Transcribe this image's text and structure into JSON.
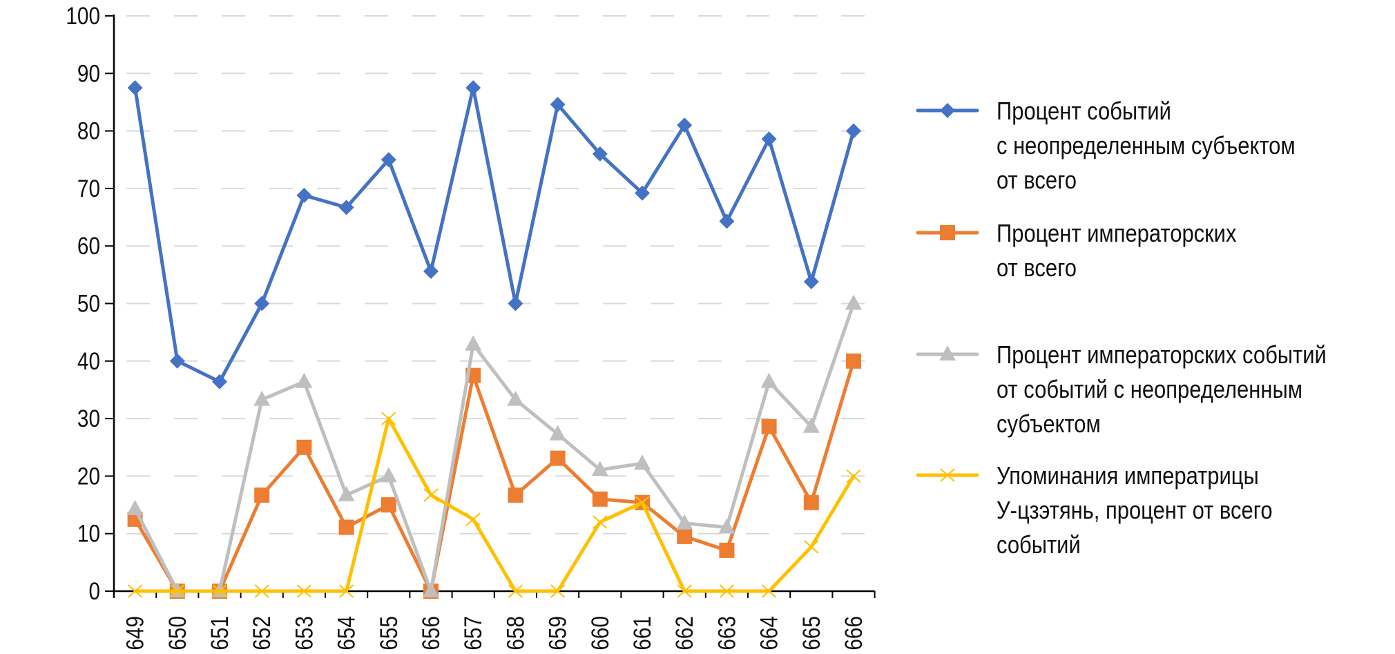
{
  "chart_data": {
    "type": "line",
    "title": "",
    "xlabel": "",
    "ylabel": "",
    "ylim": [
      0,
      100
    ],
    "yticks": [
      "0",
      "10",
      "20",
      "30",
      "40",
      "50",
      "60",
      "70",
      "80",
      "90",
      "100"
    ],
    "grid": true,
    "legend_position": "right",
    "categories": [
      "649",
      "650",
      "651",
      "652",
      "653",
      "654",
      "655",
      "656",
      "657",
      "658",
      "659",
      "660",
      "661",
      "662",
      "663",
      "664",
      "665",
      "666"
    ],
    "series": [
      {
        "name": "Процент событий с неопределенным субъектом от всего",
        "legend_lines": [
          "Процент событий",
          "с неопределенным субъектом",
          "от всего"
        ],
        "color": "#4472C4",
        "marker": "diamond",
        "values": [
          87.5,
          40,
          36.4,
          50,
          68.8,
          66.7,
          75,
          55.6,
          87.5,
          50,
          84.6,
          76,
          69.2,
          81,
          64.3,
          78.6,
          53.8,
          80
        ]
      },
      {
        "name": "Процент императорских от всего",
        "legend_lines": [
          "Процент императорских",
          "от всего"
        ],
        "color": "#ED7D31",
        "marker": "square",
        "values": [
          12.5,
          0,
          0,
          16.7,
          25,
          11.1,
          15,
          0,
          37.5,
          16.7,
          23.1,
          16,
          15.4,
          9.5,
          7.1,
          28.6,
          15.4,
          40
        ]
      },
      {
        "name": "Процент императорских событий от событий с неопределенным субъектом",
        "legend_lines": [
          "Процент императорских событий",
          "от событий с неопределенным",
          "субъектом"
        ],
        "color": "#BFBFBF",
        "marker": "triangle",
        "values": [
          14.3,
          0,
          0,
          33.3,
          36.4,
          16.7,
          20,
          0,
          42.9,
          33.3,
          27.3,
          21.1,
          22.2,
          11.8,
          11.1,
          36.4,
          28.6,
          50
        ]
      },
      {
        "name": "Упоминания императрицы У-цзэтянь, процент от всего событий",
        "legend_lines": [
          "Упоминания императрицы",
          "У-цзэтянь, процент от всего",
          "событий"
        ],
        "color": "#FFC000",
        "marker": "x",
        "values": [
          0,
          0,
          0,
          0,
          0,
          0,
          30,
          16.7,
          12.5,
          0,
          0,
          12,
          15.4,
          0,
          0,
          0,
          7.7,
          20
        ]
      }
    ]
  }
}
